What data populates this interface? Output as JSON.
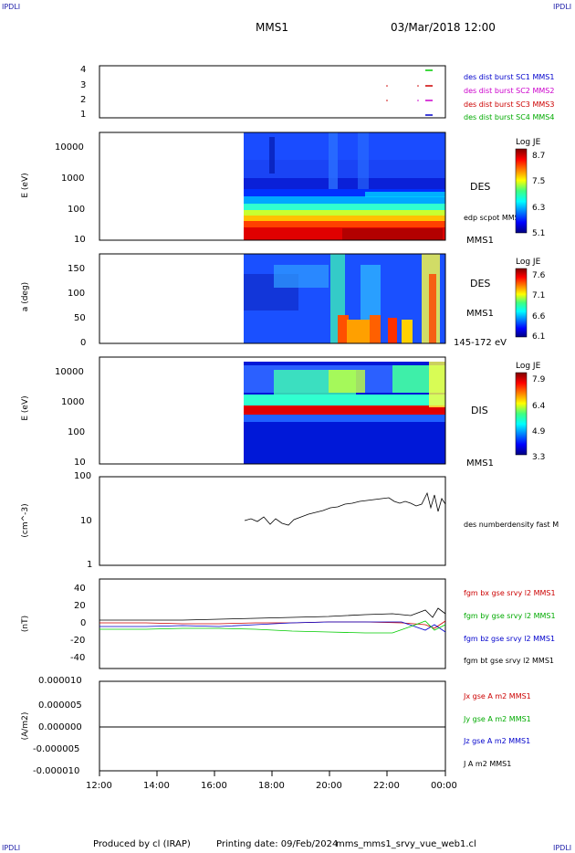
{
  "corners": {
    "tl": "IPDLI",
    "tr": "IPDLI",
    "bl": "IPDLI",
    "br": "IPDLI"
  },
  "header": {
    "spacecraft": "MMS1",
    "datetime": "03/Mar/2018 12:00"
  },
  "footer": {
    "produced": "Produced by cl (IRAP)",
    "printing": "Printing date: 09/Feb/2024",
    "file": "mms_mms1_srvy_vue_web1.cl"
  },
  "colors": {
    "c1": "#0000cc",
    "c2": "#cc00cc",
    "c3": "#cc0000",
    "c4": "#00cc00",
    "bt": "#000000"
  },
  "chart_data": [
    {
      "type": "scatter",
      "id": "burst",
      "yticks": [
        "4",
        "3",
        "2",
        "1"
      ],
      "legend": [
        "des dist burst SC1 MMS1",
        "des dist burst SC2 MMS2",
        "des dist burst SC3 MMS3",
        "des dist burst SC4 MMS4"
      ]
    },
    {
      "type": "heatmap",
      "id": "des_energy",
      "ylabel": "E (eV)",
      "yticks": [
        "10000",
        "1000",
        "100",
        "10"
      ],
      "label": "DES",
      "sublabel": "edp scpot MMS1",
      "bottomlabel": "MMS1",
      "colorbar": {
        "title": "Log JE",
        "ticks": [
          "8.7",
          "7.5",
          "6.3",
          "5.1"
        ]
      }
    },
    {
      "type": "heatmap",
      "id": "des_pitch",
      "ylabel": "a (deg)",
      "yticks": [
        "150",
        "100",
        "50",
        "0"
      ],
      "label": "DES",
      "sublabel": "MMS1",
      "bottomlabel": "145-172 eV",
      "colorbar": {
        "title": "Log JE",
        "ticks": [
          "7.6",
          "7.1",
          "6.6",
          "6.1"
        ]
      }
    },
    {
      "type": "heatmap",
      "id": "dis_energy",
      "ylabel": "E (eV)",
      "yticks": [
        "10000",
        "1000",
        "100",
        "10"
      ],
      "label": "DIS",
      "bottomlabel": "MMS1",
      "colorbar": {
        "title": "Log JE",
        "ticks": [
          "7.9",
          "6.4",
          "4.9",
          "3.3"
        ]
      }
    },
    {
      "type": "line",
      "id": "density",
      "ylabel": "(cm^-3)",
      "yticks": [
        "100",
        "10",
        "1"
      ],
      "legend": [
        "des numberdensity fast M"
      ]
    },
    {
      "type": "line",
      "id": "fgm",
      "ylabel": "(nT)",
      "yticks": [
        "40",
        "20",
        "0",
        "-20",
        "-40"
      ],
      "legend": [
        "fgm bx gse srvy l2 MMS1",
        "fgm by gse srvy l2 MMS1",
        "fgm bz gse srvy l2 MMS1",
        "fgm bt gse srvy l2 MMS1"
      ]
    },
    {
      "type": "line",
      "id": "current",
      "ylabel": "(A/m2)",
      "yticks": [
        "0.000010",
        "0.000005",
        "0.000000",
        "-0.000005",
        "-0.000010"
      ],
      "legend": [
        "Jx gse A m2 MMS1",
        "Jy gse A m2 MMS1",
        "Jz gse A m2 MMS1",
        "J A m2 MMS1"
      ]
    }
  ],
  "xaxis": {
    "ticks": [
      "12:00",
      "14:00",
      "16:00",
      "18:00",
      "20:00",
      "22:00",
      "00:00"
    ]
  }
}
